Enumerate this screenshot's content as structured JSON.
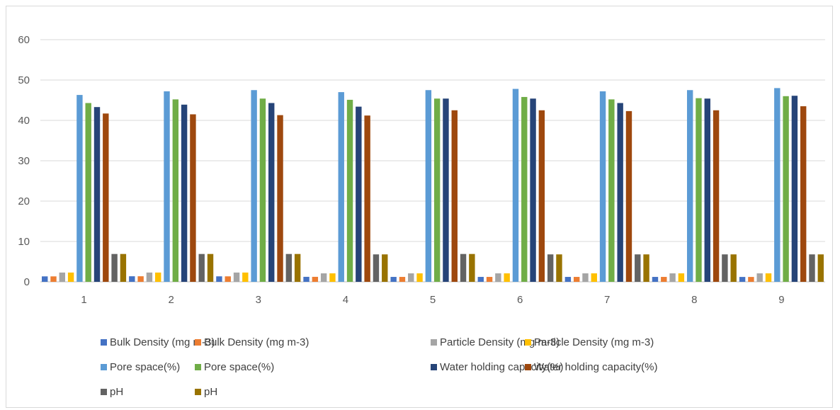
{
  "chart_data": {
    "type": "bar",
    "title": "",
    "xlabel": "",
    "ylabel": "",
    "ylim": [
      0,
      60
    ],
    "yticks": [
      "0",
      "10",
      "20",
      "30",
      "40",
      "50",
      "60"
    ],
    "categories": [
      "1",
      "2",
      "3",
      "4",
      "5",
      "6",
      "7",
      "8",
      "9"
    ],
    "grid": true,
    "legend_position": "bottom",
    "series": [
      {
        "name": "Bulk Density (mg m-3)",
        "color": "#4472c4",
        "values": [
          1.35,
          1.38,
          1.36,
          1.24,
          1.22,
          1.22,
          1.22,
          1.22,
          1.21
        ]
      },
      {
        "name": "Bulk Density (mg m-3)",
        "color": "#ed7d31",
        "values": [
          1.35,
          1.38,
          1.36,
          1.24,
          1.22,
          1.22,
          1.22,
          1.22,
          1.21
        ]
      },
      {
        "name": "Particle Density (mg m-3)",
        "color": "#a5a5a5",
        "values": [
          2.3,
          2.3,
          2.3,
          2.1,
          2.1,
          2.1,
          2.1,
          2.1,
          2.1
        ]
      },
      {
        "name": "Particle Density (mg m-3)",
        "color": "#ffc000",
        "values": [
          2.3,
          2.3,
          2.3,
          2.1,
          2.1,
          2.1,
          2.1,
          2.1,
          2.1
        ]
      },
      {
        "name": "Pore space(%)",
        "color": "#5b9bd5",
        "values": [
          46.3,
          47.2,
          47.5,
          47.0,
          47.5,
          47.8,
          47.2,
          47.5,
          48.0
        ]
      },
      {
        "name": "Pore space(%)",
        "color": "#70ad47",
        "values": [
          44.3,
          45.2,
          45.4,
          45.1,
          45.4,
          45.8,
          45.2,
          45.5,
          46.0
        ]
      },
      {
        "name": "Water holding capacity(%)",
        "color": "#264478",
        "values": [
          43.3,
          43.9,
          44.3,
          43.4,
          45.4,
          45.4,
          44.3,
          45.4,
          46.1
        ]
      },
      {
        "name": "Water holding capacity(%)",
        "color": "#9e480e",
        "values": [
          41.7,
          41.5,
          41.3,
          41.2,
          42.5,
          42.5,
          42.3,
          42.5,
          43.5
        ]
      },
      {
        "name": "pH",
        "color": "#636363",
        "values": [
          6.9,
          6.9,
          6.9,
          6.8,
          6.9,
          6.8,
          6.8,
          6.8,
          6.8
        ]
      },
      {
        "name": "pH",
        "color": "#997300",
        "values": [
          6.9,
          6.9,
          6.9,
          6.8,
          6.9,
          6.8,
          6.8,
          6.8,
          6.8
        ]
      }
    ]
  }
}
